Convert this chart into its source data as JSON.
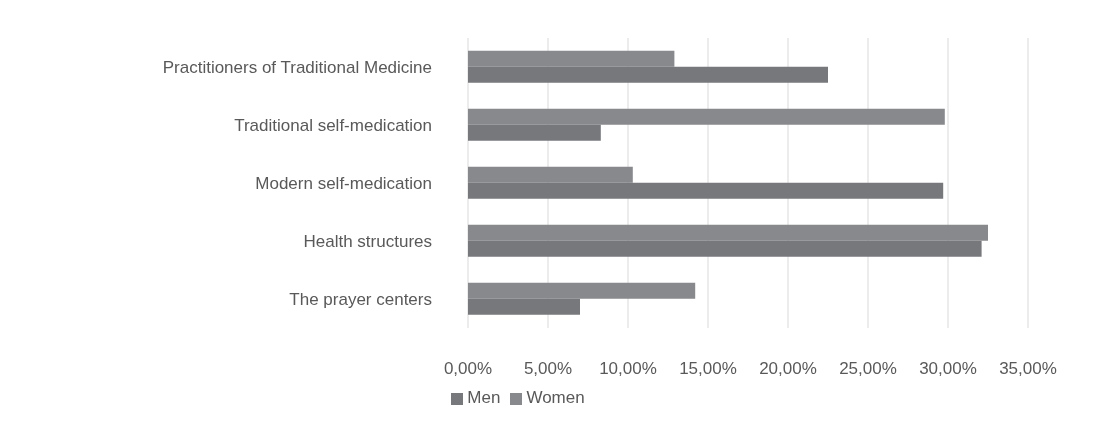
{
  "chart_data": {
    "type": "bar",
    "orientation": "horizontal",
    "categories": [
      "Practitioners of Traditional Medicine",
      "Traditional self-medication",
      "Modern self-medication",
      "Health structures",
      "The prayer centers"
    ],
    "series": [
      {
        "name": "Women",
        "color": "#88898d",
        "values": [
          12.9,
          29.8,
          10.3,
          32.5,
          14.2
        ]
      },
      {
        "name": "Men",
        "color": "#77787c",
        "values": [
          22.5,
          8.3,
          29.7,
          32.1,
          7.0
        ]
      }
    ],
    "xlim": [
      0,
      35
    ],
    "xticks": [
      {
        "value": 0,
        "label": "0,00%"
      },
      {
        "value": 5,
        "label": "5,00%"
      },
      {
        "value": 10,
        "label": "10,00%"
      },
      {
        "value": 15,
        "label": "15,00%"
      },
      {
        "value": 20,
        "label": "20,00%"
      },
      {
        "value": 25,
        "label": "25,00%"
      },
      {
        "value": 30,
        "label": "30,00%"
      },
      {
        "value": 35,
        "label": "35,00%"
      }
    ],
    "grid": "x",
    "legend": "bottom"
  }
}
